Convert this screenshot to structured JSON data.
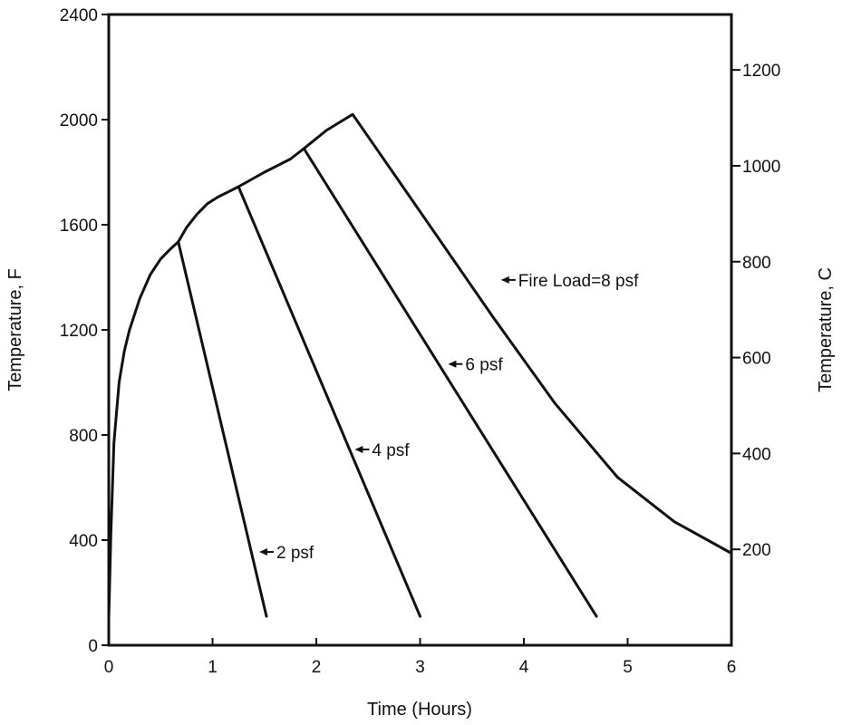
{
  "chart_data": {
    "type": "line",
    "title": "",
    "xlabel": "Time (Hours)",
    "ylabel": "Temperature, F",
    "y2label": "Temperature, C",
    "xlim": [
      0,
      6
    ],
    "ylim": [
      0,
      2400
    ],
    "y2lim": [
      0,
      1315.6
    ],
    "x_ticks": [
      "0",
      "1",
      "2",
      "3",
      "4",
      "5",
      "6"
    ],
    "y_ticks": [
      "0",
      "400",
      "800",
      "1200",
      "1600",
      "2000",
      "2400"
    ],
    "y2_ticks": [
      "200",
      "400",
      "600",
      "800",
      "1000",
      "1200"
    ],
    "grid": false,
    "legend": "none",
    "series": [
      {
        "name": "2 psf",
        "x": [
          0.0,
          0.02,
          0.05,
          0.1,
          0.15,
          0.2,
          0.3,
          0.4,
          0.5,
          0.6,
          0.67,
          1.52
        ],
        "y": [
          100,
          420,
          770,
          1000,
          1120,
          1200,
          1320,
          1410,
          1470,
          1510,
          1535,
          110
        ]
      },
      {
        "name": "4 psf",
        "x": [
          0.67,
          0.75,
          0.85,
          0.95,
          1.05,
          1.15,
          1.25,
          3.0
        ],
        "y": [
          1535,
          1590,
          1640,
          1680,
          1705,
          1725,
          1745,
          110
        ]
      },
      {
        "name": "6 psf",
        "x": [
          1.25,
          1.5,
          1.75,
          1.88,
          4.7
        ],
        "y": [
          1745,
          1800,
          1850,
          1890,
          110
        ]
      },
      {
        "name": "Fire Load=8 psf",
        "x": [
          1.88,
          2.1,
          2.35,
          3.0,
          3.7,
          4.3,
          4.9,
          5.45,
          6.0
        ],
        "y": [
          1890,
          1960,
          2020,
          1650,
          1250,
          920,
          640,
          470,
          350
        ]
      }
    ],
    "annotations": [
      {
        "text": "2 psf",
        "series": "2 psf",
        "x": 1.45,
        "y": 355
      },
      {
        "text": "4 psf",
        "series": "4 psf",
        "x": 2.37,
        "y": 745
      },
      {
        "text": "6 psf",
        "series": "6 psf",
        "x": 3.27,
        "y": 1070
      },
      {
        "text": "Fire Load=8 psf",
        "series": "Fire Load=8 psf",
        "x": 3.78,
        "y": 1390
      }
    ]
  }
}
